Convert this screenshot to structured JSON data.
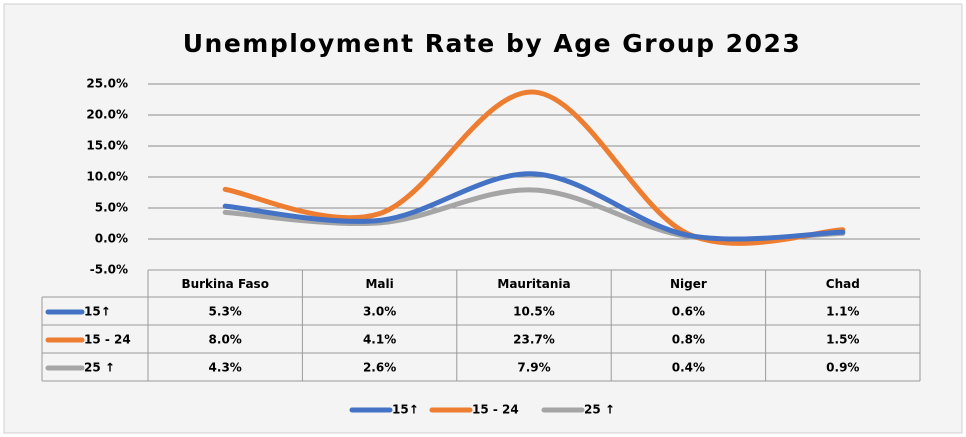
{
  "chart_data": {
    "type": "line",
    "title": "Unemployment Rate by Age Group 2023",
    "categories": [
      "Burkina Faso",
      "Mali",
      "Mauritania",
      "Niger",
      "Chad"
    ],
    "series": [
      {
        "name": "15↑",
        "color": "#4472c4",
        "values": [
          5.3,
          3.0,
          10.5,
          0.6,
          1.1
        ],
        "value_labels": [
          "5.3%",
          "3.0%",
          "10.5%",
          "0.6%",
          "1.1%"
        ]
      },
      {
        "name": "15 - 24",
        "color": "#ed7d31",
        "values": [
          8.0,
          4.1,
          23.7,
          0.8,
          1.5
        ],
        "value_labels": [
          "8.0%",
          "4.1%",
          "23.7%",
          "0.8%",
          "1.5%"
        ]
      },
      {
        "name": "25 ↑",
        "color": "#a5a5a5",
        "values": [
          4.3,
          2.6,
          7.9,
          0.4,
          0.9
        ],
        "value_labels": [
          "4.3%",
          "2.6%",
          "7.9%",
          "0.4%",
          "0.9%"
        ]
      }
    ],
    "ylim": [
      -5,
      25
    ],
    "yticks": [
      {
        "value": -5,
        "label": "-5.0%"
      },
      {
        "value": 0,
        "label": "0.0%"
      },
      {
        "value": 5,
        "label": "5.0%"
      },
      {
        "value": 10,
        "label": "10.0%"
      },
      {
        "value": 15,
        "label": "15.0%"
      },
      {
        "value": 20,
        "label": "20.0%"
      },
      {
        "value": 25,
        "label": "25.0%"
      }
    ],
    "grid": true,
    "smooth": true,
    "data_table": true,
    "legend": "bottom"
  }
}
